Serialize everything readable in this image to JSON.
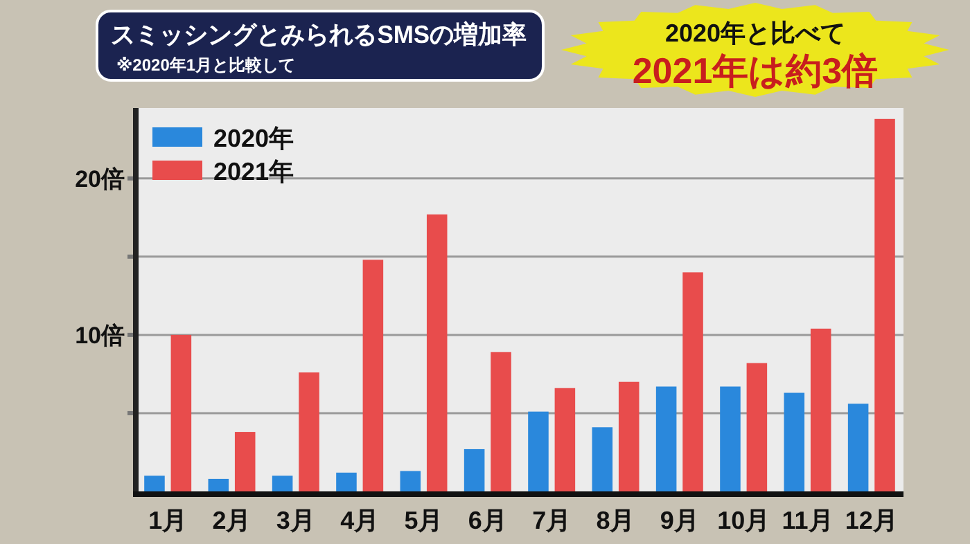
{
  "chart_data": {
    "type": "bar",
    "title": "スミッシングとみられるSMSの増加率",
    "subtitle": "※2020年1月と比較して",
    "categories": [
      "1月",
      "2月",
      "3月",
      "4月",
      "5月",
      "6月",
      "7月",
      "8月",
      "9月",
      "10月",
      "11月",
      "12月"
    ],
    "series": [
      {
        "name": "2020年",
        "color": "#2a88dc",
        "values": [
          1.0,
          0.8,
          1.0,
          1.2,
          1.3,
          2.7,
          5.1,
          4.1,
          6.7,
          6.7,
          6.3,
          5.6
        ]
      },
      {
        "name": "2021年",
        "color": "#e84c4c",
        "values": [
          10.0,
          3.8,
          7.6,
          14.8,
          17.7,
          8.9,
          6.6,
          7.0,
          14.0,
          8.2,
          10.4,
          23.8
        ]
      }
    ],
    "ylim": [
      0,
      24.5
    ],
    "yticks": [
      {
        "value": 5,
        "label": null
      },
      {
        "value": 10,
        "label": "10倍"
      },
      {
        "value": 15,
        "label": null
      },
      {
        "value": 20,
        "label": "20倍"
      }
    ],
    "grid": "y",
    "legend": "top left",
    "annotations": [
      "2020年と比べて",
      "2021年は約3倍"
    ]
  }
}
